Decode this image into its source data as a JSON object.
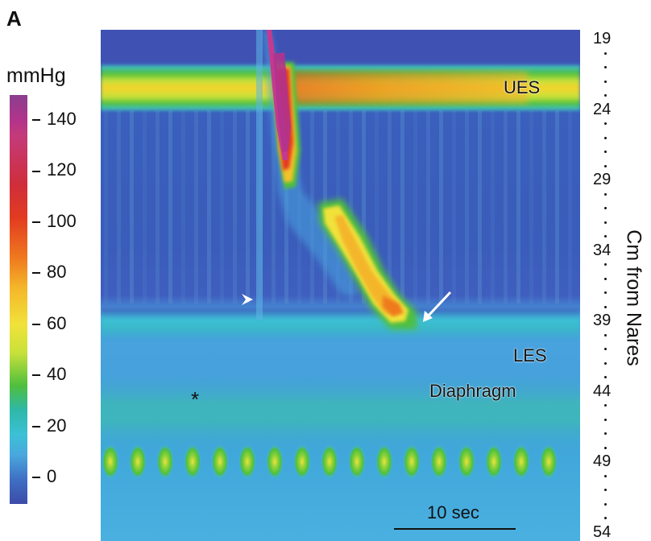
{
  "panel_label": "A",
  "colorbar": {
    "unit": "mmHg",
    "ticks": [
      140,
      120,
      100,
      80,
      60,
      40,
      20,
      0
    ],
    "colors": {
      "p140": "#c43a7a",
      "p120": "#cf2e3a",
      "p100": "#e23b20",
      "p80": "#ef7a1f",
      "p60": "#f1e23a",
      "p40": "#4fbf3d",
      "p20": "#3cc0d6",
      "p0": "#3c4ca8"
    }
  },
  "chart_data": {
    "type": "heatmap",
    "title": "",
    "xlabel": "",
    "ylabel": "Cm from Nares",
    "y_axis_side": "right",
    "y_ticks": [
      19,
      24,
      29,
      34,
      39,
      44,
      49,
      54
    ],
    "ylim": [
      19,
      54
    ],
    "colorbar_unit": "mmHg",
    "colorbar_range": [
      0,
      140
    ],
    "annotations": [
      {
        "text": "UES",
        "y_cm": 23.5
      },
      {
        "text": "LES",
        "y_cm": 41.5
      },
      {
        "text": "Diaphragm",
        "y_cm": 49
      },
      {
        "text": "*",
        "y_cm": 49.3
      },
      {
        "text": "arrowhead",
        "y_cm": 38
      },
      {
        "text": "arrow",
        "y_cm": 38.5
      }
    ],
    "scale_bar_label": "10 sec",
    "features": [
      {
        "name": "UES",
        "center_cm": 23.5,
        "baseline_mmHg": 60,
        "peak_mmHg": 140
      },
      {
        "name": "peristaltic wave",
        "start_cm": 24,
        "end_cm": 41,
        "peak_mmHg": 140
      },
      {
        "name": "LES",
        "center_cm": 41.5,
        "baseline_mmHg": 30
      },
      {
        "name": "Diaphragm",
        "center_cm": 49,
        "baseline_mmHg": 40
      }
    ],
    "grid": false,
    "legend": "colorbar-left"
  }
}
